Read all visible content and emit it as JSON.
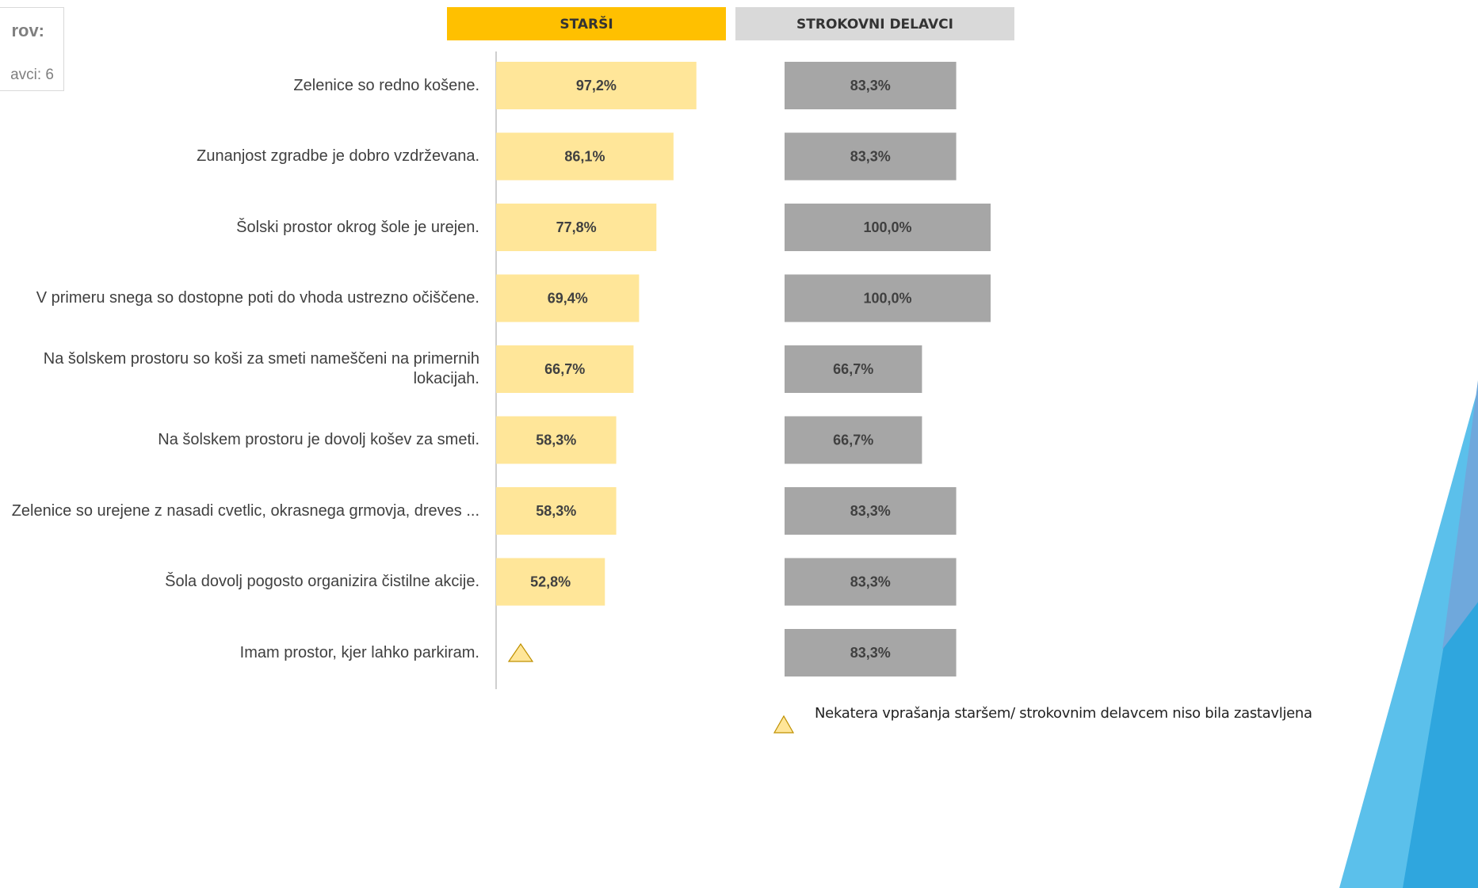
{
  "chart_data": {
    "type": "bar",
    "orientation": "horizontal",
    "xlim": [
      0,
      100
    ],
    "categories": [
      "Zelenice so redno košene.",
      "Zunanjost zgradbe je dobro vzdrževana.",
      "Šolski prostor okrog šole je urejen.",
      "V primeru snega so dostopne poti do vhoda ustrezno očiščene.",
      "Na šolskem prostoru so koši za smeti nameščeni na primernih lokacijah.",
      "Na šolskem prostoru je dovolj košev za smeti.",
      "Zelenice so urejene z nasadi cvetlic, okrasnega grmovja, dreves ...",
      "Šola dovolj pogosto organizira čistilne akcije.",
      "Imam prostor, kjer lahko parkiram."
    ],
    "series": [
      {
        "name": "STARŠI",
        "color": "#FFE699",
        "header_color": "#FFC000",
        "values": [
          97.2,
          86.1,
          77.8,
          69.4,
          66.7,
          58.3,
          58.3,
          52.8,
          null
        ],
        "value_labels": [
          "97,2%",
          "86,1%",
          "77,8%",
          "69,4%",
          "66,7%",
          "58,3%",
          "58,3%",
          "52,8%",
          null
        ]
      },
      {
        "name": "STROKOVNI DELAVCI",
        "color": "#A6A6A6",
        "header_color": "#D9D9D9",
        "values": [
          83.3,
          83.3,
          100.0,
          100.0,
          66.7,
          66.7,
          83.3,
          83.3,
          83.3
        ],
        "value_labels": [
          "83,3%",
          "83,3%",
          "100,0%",
          "100,0%",
          "66,7%",
          "66,7%",
          "83,3%",
          "83,3%",
          "83,3%"
        ]
      }
    ],
    "note": "Nekatera vprašanja staršem/ strokovnim delavcem niso bila zastavljena",
    "sample_box": {
      "title": "rov:",
      "text": "avci: 6"
    }
  }
}
